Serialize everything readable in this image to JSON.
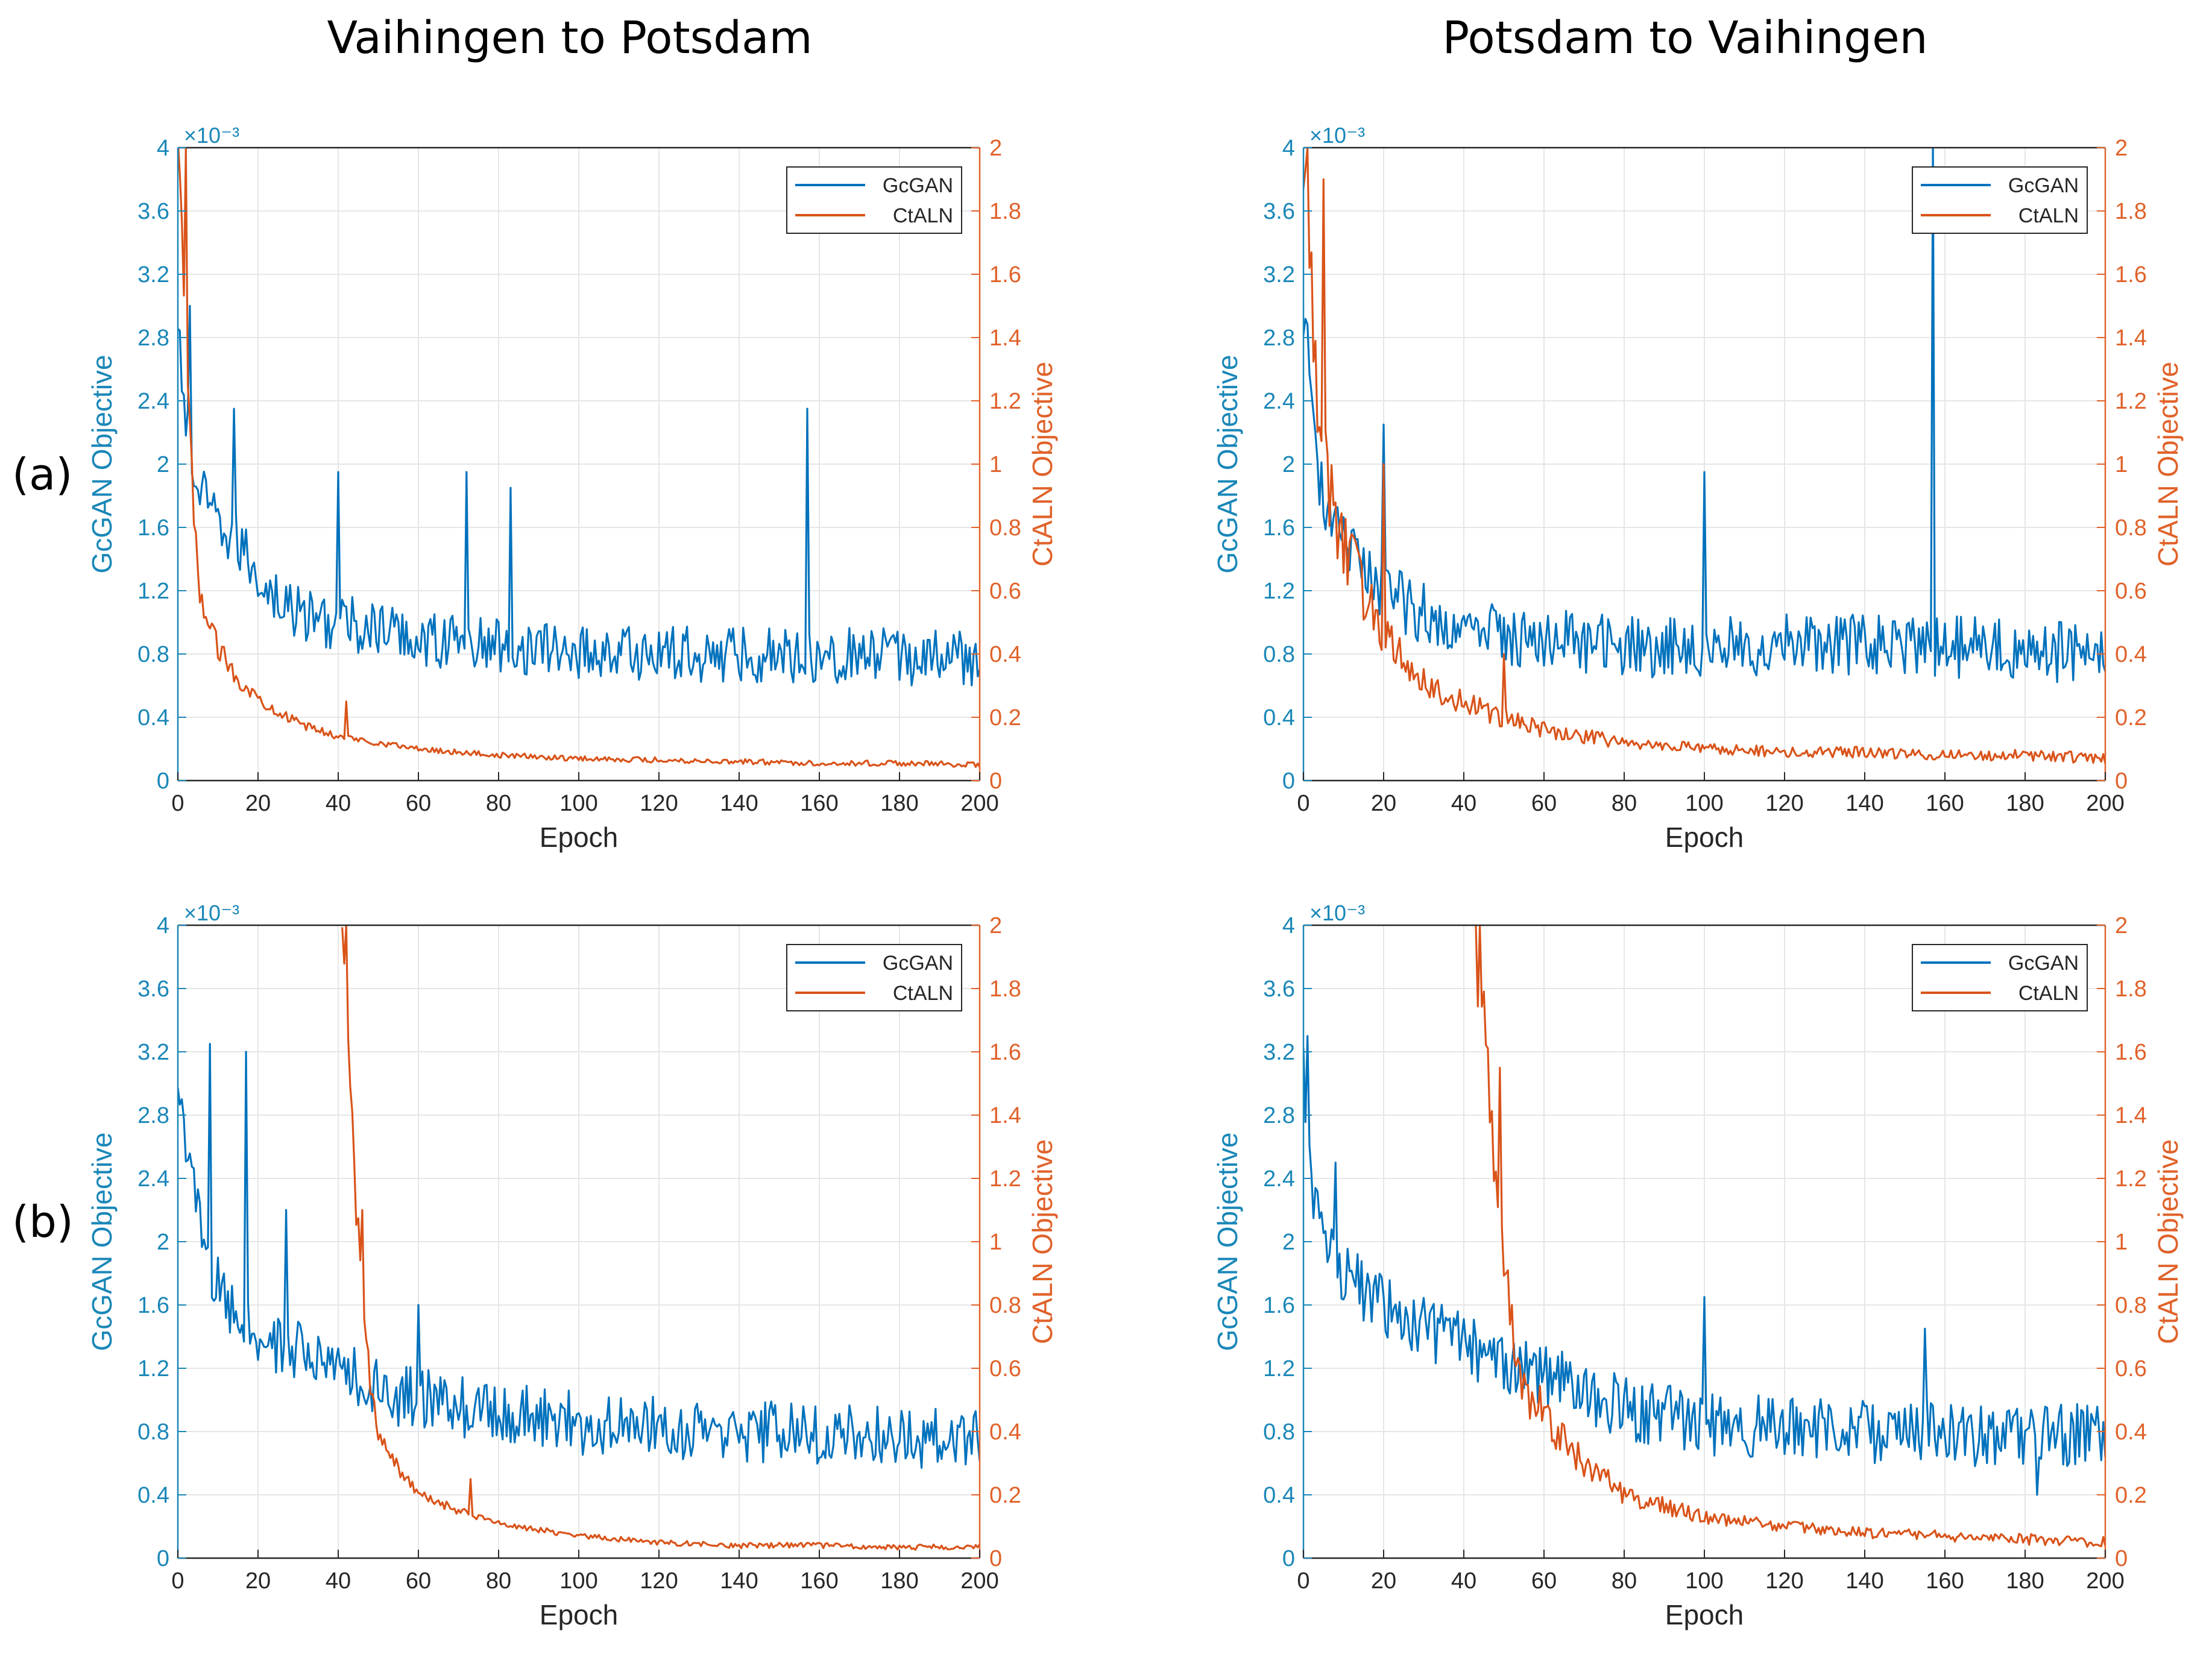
{
  "titles": {
    "left": "Vaihingen to Potsdam",
    "right": "Potsdam to Vaihingen"
  },
  "row_labels": {
    "a": "(a)",
    "b": "(b)"
  },
  "colors": {
    "gcgan": "#0072BD",
    "ctaln": "#D95319",
    "left_axis": "#1a87b8",
    "right_axis": "#e0622a",
    "grid": "#e6e6e6"
  },
  "chart_data": [
    {
      "id": "a-left",
      "type": "line",
      "title": "Vaihingen to Potsdam",
      "row": "(a)",
      "xlabel": "Epoch",
      "ylabel_left": "GcGAN Objective",
      "ylabel_right": "CtALN Objective",
      "exponent_label": "×10⁻³",
      "xlim": [
        0,
        200
      ],
      "ylim_left": [
        0,
        4
      ],
      "ylim_right": [
        0,
        2
      ],
      "xticks": [
        "0",
        "20",
        "40",
        "60",
        "80",
        "100",
        "120",
        "140",
        "160",
        "180",
        "200"
      ],
      "yticks_left": [
        "0",
        "0.4",
        "0.8",
        "1.2",
        "1.6",
        "2",
        "2.4",
        "2.8",
        "3.2",
        "3.6",
        "4"
      ],
      "yticks_right": [
        "0",
        "0.2",
        "0.4",
        "0.6",
        "0.8",
        "1",
        "1.2",
        "1.4",
        "1.6",
        "1.8",
        "2"
      ],
      "legend": [
        "GcGAN",
        "CtALN"
      ],
      "legend_position": "top-right",
      "grid": true,
      "series": [
        {
          "name": "GcGAN",
          "axis": "left",
          "x": [
            0,
            2,
            4,
            6,
            10,
            15,
            20,
            25,
            30,
            40,
            50,
            60,
            80,
            100,
            120,
            140,
            160,
            180,
            200
          ],
          "values": [
            2.8,
            2.3,
            1.9,
            1.8,
            1.6,
            1.5,
            1.3,
            1.15,
            1.05,
            1.0,
            0.95,
            0.9,
            0.85,
            0.82,
            0.8,
            0.8,
            0.8,
            0.78,
            0.78
          ],
          "noise": 0.18,
          "spikes": [
            [
              3,
              3.0
            ],
            [
              14,
              2.35
            ],
            [
              40,
              1.95
            ],
            [
              72,
              1.95
            ],
            [
              83,
              1.85
            ],
            [
              157,
              2.35
            ]
          ]
        },
        {
          "name": "CtALN",
          "axis": "right",
          "x": [
            0,
            2,
            4,
            6,
            10,
            15,
            20,
            30,
            40,
            60,
            80,
            100,
            120,
            140,
            160,
            180,
            200
          ],
          "values": [
            2.0,
            1.4,
            0.8,
            0.55,
            0.42,
            0.32,
            0.26,
            0.18,
            0.14,
            0.1,
            0.08,
            0.07,
            0.065,
            0.06,
            0.055,
            0.055,
            0.05
          ],
          "noise": 0.025,
          "spikes": [
            [
              2,
              2.0
            ],
            [
              42,
              0.25
            ]
          ]
        }
      ]
    },
    {
      "id": "a-right",
      "type": "line",
      "title": "Potsdam to Vaihingen",
      "row": "(a)",
      "xlabel": "Epoch",
      "ylabel_left": "GcGAN Objective",
      "ylabel_right": "CtALN Objective",
      "exponent_label": "×10⁻³",
      "xlim": [
        0,
        200
      ],
      "ylim_left": [
        0,
        4
      ],
      "ylim_right": [
        0,
        2
      ],
      "xticks": [
        "0",
        "20",
        "40",
        "60",
        "80",
        "100",
        "120",
        "140",
        "160",
        "180",
        "200"
      ],
      "yticks_left": [
        "0",
        "0.4",
        "0.8",
        "1.2",
        "1.6",
        "2",
        "2.4",
        "2.8",
        "3.2",
        "3.6",
        "4"
      ],
      "yticks_right": [
        "0",
        "0.2",
        "0.4",
        "0.6",
        "0.8",
        "1",
        "1.2",
        "1.4",
        "1.6",
        "1.8",
        "2"
      ],
      "legend": [
        "GcGAN",
        "CtALN"
      ],
      "legend_position": "top-right",
      "grid": true,
      "series": [
        {
          "name": "GcGAN",
          "axis": "left",
          "x": [
            0,
            2,
            4,
            6,
            10,
            15,
            20,
            30,
            40,
            60,
            80,
            100,
            120,
            140,
            160,
            180,
            200
          ],
          "values": [
            3.0,
            2.4,
            1.9,
            1.7,
            1.5,
            1.35,
            1.2,
            1.05,
            0.95,
            0.9,
            0.85,
            0.85,
            0.85,
            0.85,
            0.85,
            0.82,
            0.8
          ],
          "noise": 0.2,
          "spikes": [
            [
              20,
              2.25
            ],
            [
              100,
              1.95
            ],
            [
              157,
              4.0
            ]
          ]
        },
        {
          "name": "CtALN",
          "axis": "right",
          "x": [
            0,
            3,
            6,
            10,
            15,
            20,
            30,
            40,
            50,
            60,
            80,
            100,
            120,
            140,
            160,
            180,
            200
          ],
          "values": [
            2.0,
            1.3,
            0.95,
            0.75,
            0.6,
            0.45,
            0.32,
            0.24,
            0.2,
            0.16,
            0.12,
            0.1,
            0.09,
            0.09,
            0.08,
            0.08,
            0.07
          ],
          "noise": 0.05,
          "spikes": [
            [
              1,
              2.0
            ],
            [
              5,
              1.9
            ],
            [
              20,
              1.0
            ],
            [
              50,
              0.4
            ]
          ]
        }
      ]
    },
    {
      "id": "b-left",
      "type": "line",
      "title": "Vaihingen to Potsdam",
      "row": "(b)",
      "xlabel": "Epoch",
      "ylabel_left": "GcGAN Objective",
      "ylabel_right": "CtALN Objective",
      "exponent_label": "×10⁻³",
      "xlim": [
        0,
        200
      ],
      "ylim_left": [
        0,
        4
      ],
      "ylim_right": [
        0,
        2
      ],
      "xticks": [
        "0",
        "20",
        "40",
        "60",
        "80",
        "100",
        "120",
        "140",
        "160",
        "180",
        "200"
      ],
      "yticks_left": [
        "0",
        "0.4",
        "0.8",
        "1.2",
        "1.6",
        "2",
        "2.4",
        "2.8",
        "3.2",
        "3.6",
        "4"
      ],
      "yticks_right": [
        "0",
        "0.2",
        "0.4",
        "0.6",
        "0.8",
        "1",
        "1.2",
        "1.4",
        "1.6",
        "1.8",
        "2"
      ],
      "legend": [
        "GcGAN",
        "CtALN"
      ],
      "legend_position": "top-right",
      "grid": true,
      "series": [
        {
          "name": "GcGAN",
          "axis": "left",
          "x": [
            0,
            3,
            6,
            10,
            15,
            20,
            30,
            40,
            50,
            60,
            80,
            100,
            120,
            140,
            160,
            180,
            200
          ],
          "values": [
            3.0,
            2.5,
            2.0,
            1.7,
            1.5,
            1.4,
            1.3,
            1.2,
            1.05,
            1.0,
            0.92,
            0.85,
            0.82,
            0.8,
            0.78,
            0.75,
            0.75
          ],
          "noise": 0.2,
          "spikes": [
            [
              8,
              3.25
            ],
            [
              17,
              3.2
            ],
            [
              27,
              2.2
            ],
            [
              60,
              1.6
            ]
          ]
        },
        {
          "name": "CtALN",
          "axis": "right",
          "x": [
            41,
            42,
            44,
            46,
            48,
            50,
            55,
            60,
            70,
            80,
            100,
            120,
            140,
            160,
            180,
            200
          ],
          "values": [
            2.0,
            1.8,
            1.2,
            0.8,
            0.55,
            0.4,
            0.28,
            0.2,
            0.15,
            0.11,
            0.07,
            0.05,
            0.04,
            0.04,
            0.035,
            0.035
          ],
          "noise": 0.025,
          "spikes": [
            [
              42,
              2.0
            ],
            [
              46,
              1.1
            ],
            [
              73,
              0.25
            ]
          ]
        }
      ]
    },
    {
      "id": "b-right",
      "type": "line",
      "title": "Potsdam to Vaihingen",
      "row": "(b)",
      "xlabel": "Epoch",
      "ylabel_left": "GcGAN Objective",
      "ylabel_right": "CtALN Objective",
      "exponent_label": "×10⁻³",
      "xlim": [
        0,
        200
      ],
      "ylim_left": [
        0,
        4
      ],
      "ylim_right": [
        0,
        2
      ],
      "xticks": [
        "0",
        "20",
        "40",
        "60",
        "80",
        "100",
        "120",
        "140",
        "160",
        "180",
        "200"
      ],
      "yticks_left": [
        "0",
        "0.4",
        "0.8",
        "1.2",
        "1.6",
        "2",
        "2.4",
        "2.8",
        "3.2",
        "3.6",
        "4"
      ],
      "yticks_right": [
        "0",
        "0.2",
        "0.4",
        "0.6",
        "0.8",
        "1",
        "1.2",
        "1.4",
        "1.6",
        "1.8",
        "2"
      ],
      "legend": [
        "GcGAN",
        "CtALN"
      ],
      "legend_position": "top-right",
      "grid": true,
      "series": [
        {
          "name": "GcGAN",
          "axis": "left",
          "x": [
            0,
            2,
            5,
            10,
            20,
            30,
            40,
            50,
            60,
            70,
            80,
            100,
            120,
            140,
            160,
            180,
            200
          ],
          "values": [
            3.1,
            2.4,
            2.0,
            1.8,
            1.6,
            1.45,
            1.35,
            1.25,
            1.15,
            1.05,
            0.95,
            0.85,
            0.82,
            0.8,
            0.8,
            0.75,
            0.8
          ],
          "noise": 0.2,
          "spikes": [
            [
              1,
              3.3
            ],
            [
              8,
              2.5
            ],
            [
              100,
              1.65
            ],
            [
              155,
              1.45
            ],
            [
              183,
              0.4
            ]
          ]
        },
        {
          "name": "CtALN",
          "axis": "right",
          "x": [
            43,
            44,
            46,
            48,
            50,
            52,
            55,
            60,
            65,
            70,
            80,
            100,
            120,
            140,
            160,
            180,
            200
          ],
          "values": [
            1.9,
            1.85,
            1.5,
            1.2,
            0.9,
            0.7,
            0.55,
            0.45,
            0.38,
            0.3,
            0.2,
            0.13,
            0.1,
            0.08,
            0.07,
            0.06,
            0.05
          ],
          "noise": 0.05,
          "spikes": [
            [
              44,
              2.0
            ],
            [
              49,
              1.55
            ],
            [
              52,
              0.8
            ]
          ]
        }
      ]
    }
  ]
}
